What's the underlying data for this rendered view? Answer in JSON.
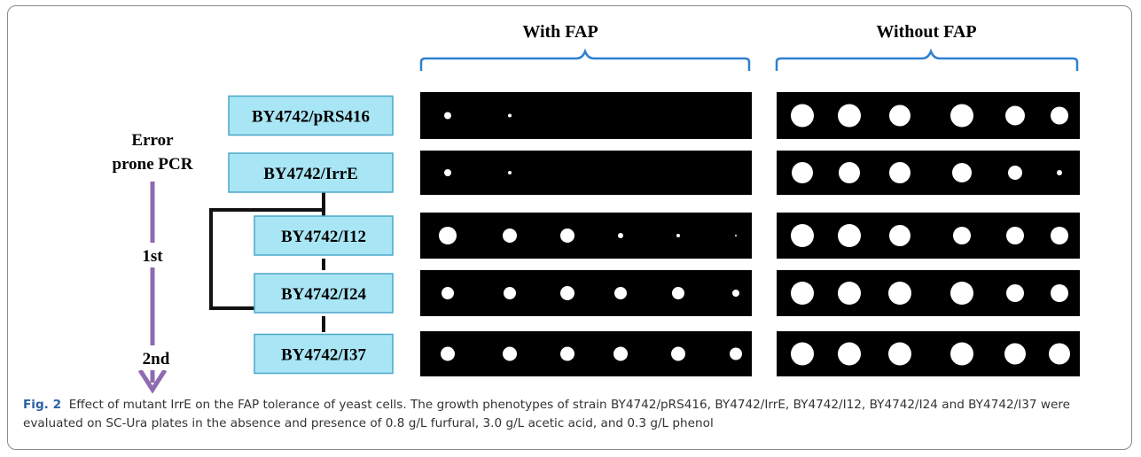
{
  "figure": {
    "headers": [
      "With FAP",
      "Without FAP"
    ],
    "left_labels": {
      "line1": "Error",
      "line2": "prone PCR",
      "round1": "1st",
      "round2": "2nd"
    },
    "strains": [
      "BY4742/pRS416",
      "BY4742/IrrE",
      "BY4742/I12",
      "BY4742/I24",
      "BY4742/I37"
    ],
    "caption": {
      "label": "Fig. 2",
      "text": "Effect of mutant IrrE on the FAP tolerance of yeast cells. The growth phenotypes of strain BY4742/pRS416, BY4742/IrrE, BY4742/I12, BY4742/I24 and BY4742/I37 were evaluated on SC-Ura plates in the absence and presence of 0.8 g/L furfural, 3.0 g/L acetic acid, and 0.3 g/L phenol"
    }
  }
}
